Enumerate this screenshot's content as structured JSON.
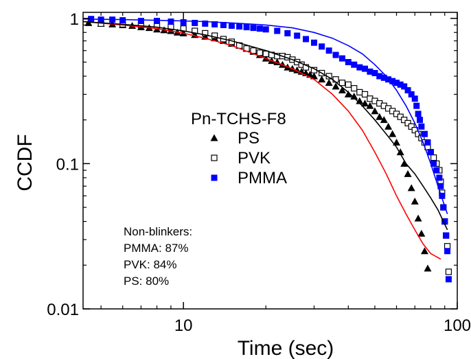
{
  "chart_data": {
    "type": "scatter",
    "x_scale": "log",
    "y_scale": "log",
    "xlabel": "Time (sec)",
    "ylabel": "CCDF",
    "xlim": [
      4.3,
      100
    ],
    "ylim": [
      0.01,
      1.1
    ],
    "x_ticks": [
      {
        "value": 10,
        "label": "10"
      },
      {
        "value": 100,
        "label": "100"
      }
    ],
    "y_ticks": [
      {
        "value": 0.01,
        "label": "0.01"
      },
      {
        "value": 0.1,
        "label": "0.1"
      },
      {
        "value": 1,
        "label": "1"
      }
    ],
    "grid": false,
    "legend": {
      "title": "Pn-TCHS-F8",
      "placement": "center",
      "entries": [
        {
          "label": "PS",
          "marker": "filled-triangle",
          "color": "#000000"
        },
        {
          "label": "PVK",
          "marker": "open-square",
          "color": "#000000"
        },
        {
          "label": "PMMA",
          "marker": "filled-square",
          "color": "#0000ff"
        }
      ]
    },
    "annotation": {
      "lines": [
        "Non-blinkers:",
        "PMMA:  87%",
        "PVK: 84%",
        "PS: 80%"
      ],
      "placement": "bottom-left"
    },
    "series": [
      {
        "name": "PS",
        "marker": "filled-triangle",
        "color": "#000000",
        "points": [
          [
            4.5,
            0.93
          ],
          [
            5,
            0.92
          ],
          [
            5.5,
            0.91
          ],
          [
            6,
            0.9
          ],
          [
            6.5,
            0.89
          ],
          [
            7,
            0.87
          ],
          [
            7.5,
            0.86
          ],
          [
            8,
            0.84
          ],
          [
            8.5,
            0.83
          ],
          [
            9,
            0.82
          ],
          [
            9.5,
            0.8
          ],
          [
            10,
            0.79
          ],
          [
            11,
            0.77
          ],
          [
            12,
            0.75
          ],
          [
            13,
            0.73
          ],
          [
            14,
            0.7
          ],
          [
            15,
            0.67
          ],
          [
            16,
            0.65
          ],
          [
            17,
            0.62
          ],
          [
            18,
            0.59
          ],
          [
            19,
            0.56
          ],
          [
            20,
            0.53
          ],
          [
            21,
            0.51
          ],
          [
            22,
            0.5
          ],
          [
            23,
            0.48
          ],
          [
            24,
            0.46
          ],
          [
            25,
            0.45
          ],
          [
            26,
            0.44
          ],
          [
            27,
            0.43
          ],
          [
            28,
            0.42
          ],
          [
            29,
            0.41
          ],
          [
            30,
            0.4
          ],
          [
            32,
            0.38
          ],
          [
            34,
            0.36
          ],
          [
            36,
            0.34
          ],
          [
            38,
            0.32
          ],
          [
            40,
            0.3
          ],
          [
            42,
            0.29
          ],
          [
            44,
            0.27
          ],
          [
            46,
            0.26
          ],
          [
            48,
            0.25
          ],
          [
            50,
            0.23
          ],
          [
            52,
            0.21
          ],
          [
            54,
            0.2
          ],
          [
            56,
            0.18
          ],
          [
            58,
            0.16
          ],
          [
            60,
            0.14
          ],
          [
            62,
            0.12
          ],
          [
            64,
            0.1
          ],
          [
            66,
            0.085
          ],
          [
            68,
            0.068
          ],
          [
            70,
            0.055
          ],
          [
            72,
            0.042
          ],
          [
            74,
            0.033
          ],
          [
            76,
            0.025
          ],
          [
            78,
            0.019
          ]
        ]
      },
      {
        "name": "PVK",
        "marker": "open-square",
        "color": "#000000",
        "points": [
          [
            5,
            0.92
          ],
          [
            6,
            0.91
          ],
          [
            7,
            0.9
          ],
          [
            8,
            0.89
          ],
          [
            9,
            0.87
          ],
          [
            10,
            0.85
          ],
          [
            11,
            0.82
          ],
          [
            12,
            0.79
          ],
          [
            13,
            0.76
          ],
          [
            14,
            0.72
          ],
          [
            15,
            0.69
          ],
          [
            16,
            0.65
          ],
          [
            17,
            0.62
          ],
          [
            18,
            0.6
          ],
          [
            19,
            0.58
          ],
          [
            20,
            0.57
          ],
          [
            21,
            0.56
          ],
          [
            22,
            0.55
          ],
          [
            23,
            0.55
          ],
          [
            24,
            0.54
          ],
          [
            25,
            0.52
          ],
          [
            26,
            0.5
          ],
          [
            27,
            0.48
          ],
          [
            28,
            0.46
          ],
          [
            30,
            0.44
          ],
          [
            32,
            0.42
          ],
          [
            34,
            0.4
          ],
          [
            36,
            0.38
          ],
          [
            38,
            0.36
          ],
          [
            40,
            0.35
          ],
          [
            42,
            0.33
          ],
          [
            44,
            0.31
          ],
          [
            46,
            0.3
          ],
          [
            48,
            0.28
          ],
          [
            50,
            0.27
          ],
          [
            52,
            0.26
          ],
          [
            54,
            0.25
          ],
          [
            56,
            0.24
          ],
          [
            58,
            0.23
          ],
          [
            60,
            0.22
          ],
          [
            62,
            0.21
          ],
          [
            64,
            0.2
          ],
          [
            66,
            0.19
          ],
          [
            68,
            0.18
          ],
          [
            70,
            0.17
          ],
          [
            72,
            0.16
          ],
          [
            74,
            0.15
          ],
          [
            76,
            0.14
          ],
          [
            78,
            0.13
          ],
          [
            80,
            0.12
          ],
          [
            82,
            0.11
          ],
          [
            84,
            0.1
          ],
          [
            86,
            0.09
          ],
          [
            87,
            0.075
          ],
          [
            88,
            0.063
          ],
          [
            89,
            0.05
          ],
          [
            90,
            0.04
          ],
          [
            91,
            0.032
          ],
          [
            92,
            0.027
          ],
          [
            93,
            0.018
          ]
        ]
      },
      {
        "name": "PMMA",
        "marker": "filled-square",
        "color": "#0000ff",
        "points": [
          [
            4.6,
            0.99
          ],
          [
            5,
            0.98
          ],
          [
            5.5,
            0.98
          ],
          [
            6,
            0.97
          ],
          [
            7,
            0.96
          ],
          [
            8,
            0.96
          ],
          [
            9,
            0.95
          ],
          [
            10,
            0.94
          ],
          [
            11,
            0.93
          ],
          [
            12,
            0.92
          ],
          [
            13,
            0.91
          ],
          [
            14,
            0.9
          ],
          [
            15,
            0.89
          ],
          [
            16,
            0.88
          ],
          [
            17,
            0.87
          ],
          [
            18,
            0.86
          ],
          [
            19,
            0.85
          ],
          [
            20,
            0.84
          ],
          [
            22,
            0.82
          ],
          [
            24,
            0.79
          ],
          [
            26,
            0.76
          ],
          [
            28,
            0.72
          ],
          [
            30,
            0.68
          ],
          [
            32,
            0.64
          ],
          [
            34,
            0.6
          ],
          [
            36,
            0.56
          ],
          [
            38,
            0.53
          ],
          [
            40,
            0.5
          ],
          [
            42,
            0.48
          ],
          [
            44,
            0.46
          ],
          [
            46,
            0.45
          ],
          [
            48,
            0.43
          ],
          [
            50,
            0.42
          ],
          [
            52,
            0.4
          ],
          [
            54,
            0.39
          ],
          [
            56,
            0.38
          ],
          [
            58,
            0.37
          ],
          [
            60,
            0.36
          ],
          [
            62,
            0.35
          ],
          [
            64,
            0.34
          ],
          [
            66,
            0.32
          ],
          [
            68,
            0.3
          ],
          [
            70,
            0.28
          ],
          [
            71,
            0.25
          ],
          [
            72,
            0.22
          ],
          [
            73,
            0.2
          ],
          [
            74,
            0.18
          ],
          [
            76,
            0.16
          ],
          [
            78,
            0.14
          ],
          [
            80,
            0.12
          ],
          [
            82,
            0.1
          ],
          [
            84,
            0.09
          ],
          [
            86,
            0.08
          ],
          [
            87,
            0.07
          ],
          [
            88,
            0.06
          ],
          [
            89,
            0.05
          ],
          [
            90,
            0.04
          ],
          [
            91,
            0.032
          ],
          [
            92,
            0.025
          ],
          [
            93,
            0.016
          ]
        ]
      },
      {
        "name": "PS fit",
        "style": "line",
        "color": "#ff0000",
        "points": [
          [
            4.3,
            0.95
          ],
          [
            6,
            0.9
          ],
          [
            8,
            0.85
          ],
          [
            10,
            0.79
          ],
          [
            12,
            0.73
          ],
          [
            15,
            0.65
          ],
          [
            20,
            0.53
          ],
          [
            25,
            0.45
          ],
          [
            30,
            0.38
          ],
          [
            35,
            0.3
          ],
          [
            40,
            0.23
          ],
          [
            45,
            0.17
          ],
          [
            50,
            0.12
          ],
          [
            55,
            0.085
          ],
          [
            60,
            0.06
          ],
          [
            65,
            0.045
          ],
          [
            70,
            0.035
          ],
          [
            75,
            0.028
          ],
          [
            80,
            0.024
          ],
          [
            87,
            0.022
          ]
        ]
      },
      {
        "name": "PVK fit",
        "style": "line",
        "color": "#000000",
        "points": [
          [
            4.3,
            0.95
          ],
          [
            6,
            0.91
          ],
          [
            8,
            0.87
          ],
          [
            10,
            0.82
          ],
          [
            12,
            0.77
          ],
          [
            15,
            0.7
          ],
          [
            20,
            0.6
          ],
          [
            25,
            0.52
          ],
          [
            30,
            0.45
          ],
          [
            35,
            0.38
          ],
          [
            40,
            0.31
          ],
          [
            45,
            0.25
          ],
          [
            50,
            0.2
          ],
          [
            55,
            0.16
          ],
          [
            60,
            0.13
          ],
          [
            65,
            0.1
          ],
          [
            70,
            0.085
          ],
          [
            75,
            0.07
          ],
          [
            80,
            0.058
          ],
          [
            85,
            0.048
          ],
          [
            92,
            0.035
          ]
        ]
      },
      {
        "name": "PMMA fit",
        "style": "line",
        "color": "#0000ff",
        "points": [
          [
            4.3,
            0.99
          ],
          [
            6,
            0.98
          ],
          [
            8,
            0.97
          ],
          [
            10,
            0.96
          ],
          [
            12,
            0.95
          ],
          [
            15,
            0.93
          ],
          [
            20,
            0.9
          ],
          [
            25,
            0.86
          ],
          [
            30,
            0.8
          ],
          [
            35,
            0.73
          ],
          [
            40,
            0.65
          ],
          [
            45,
            0.57
          ],
          [
            50,
            0.48
          ],
          [
            55,
            0.4
          ],
          [
            60,
            0.32
          ],
          [
            65,
            0.25
          ],
          [
            70,
            0.19
          ],
          [
            75,
            0.14
          ],
          [
            80,
            0.1
          ],
          [
            85,
            0.07
          ],
          [
            92,
            0.045
          ]
        ]
      }
    ]
  }
}
